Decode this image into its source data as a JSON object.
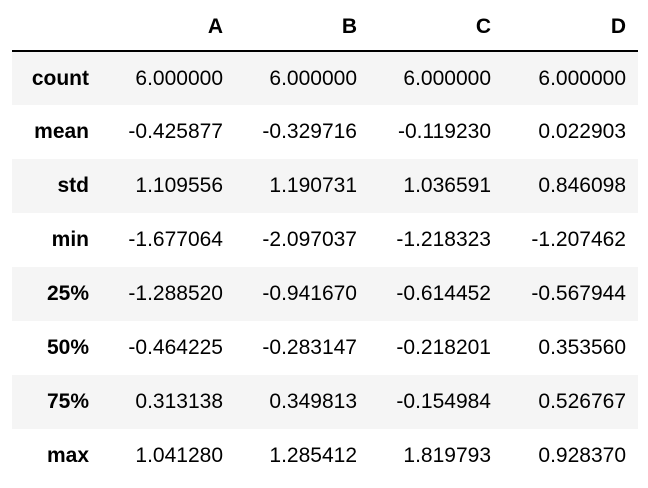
{
  "table": {
    "index_header": "",
    "columns": [
      "A",
      "B",
      "C",
      "D"
    ],
    "rows": [
      {
        "label": "count",
        "values": [
          "6.000000",
          "6.000000",
          "6.000000",
          "6.000000"
        ]
      },
      {
        "label": "mean",
        "values": [
          "-0.425877",
          "-0.329716",
          "-0.119230",
          "0.022903"
        ]
      },
      {
        "label": "std",
        "values": [
          "1.109556",
          "1.190731",
          "1.036591",
          "0.846098"
        ]
      },
      {
        "label": "min",
        "values": [
          "-1.677064",
          "-2.097037",
          "-1.218323",
          "-1.207462"
        ]
      },
      {
        "label": "25%",
        "values": [
          "-1.288520",
          "-0.941670",
          "-0.614452",
          "-0.567944"
        ]
      },
      {
        "label": "50%",
        "values": [
          "-0.464225",
          "-0.283147",
          "-0.218201",
          "0.353560"
        ]
      },
      {
        "label": "75%",
        "values": [
          "0.313138",
          "0.349813",
          "-0.154984",
          "0.526767"
        ]
      },
      {
        "label": "max",
        "values": [
          "1.041280",
          "1.285412",
          "1.819793",
          "0.928370"
        ]
      }
    ]
  },
  "colors": {
    "striped_row": "#f5f5f5",
    "header_rule": "#000000",
    "text": "#000000"
  }
}
